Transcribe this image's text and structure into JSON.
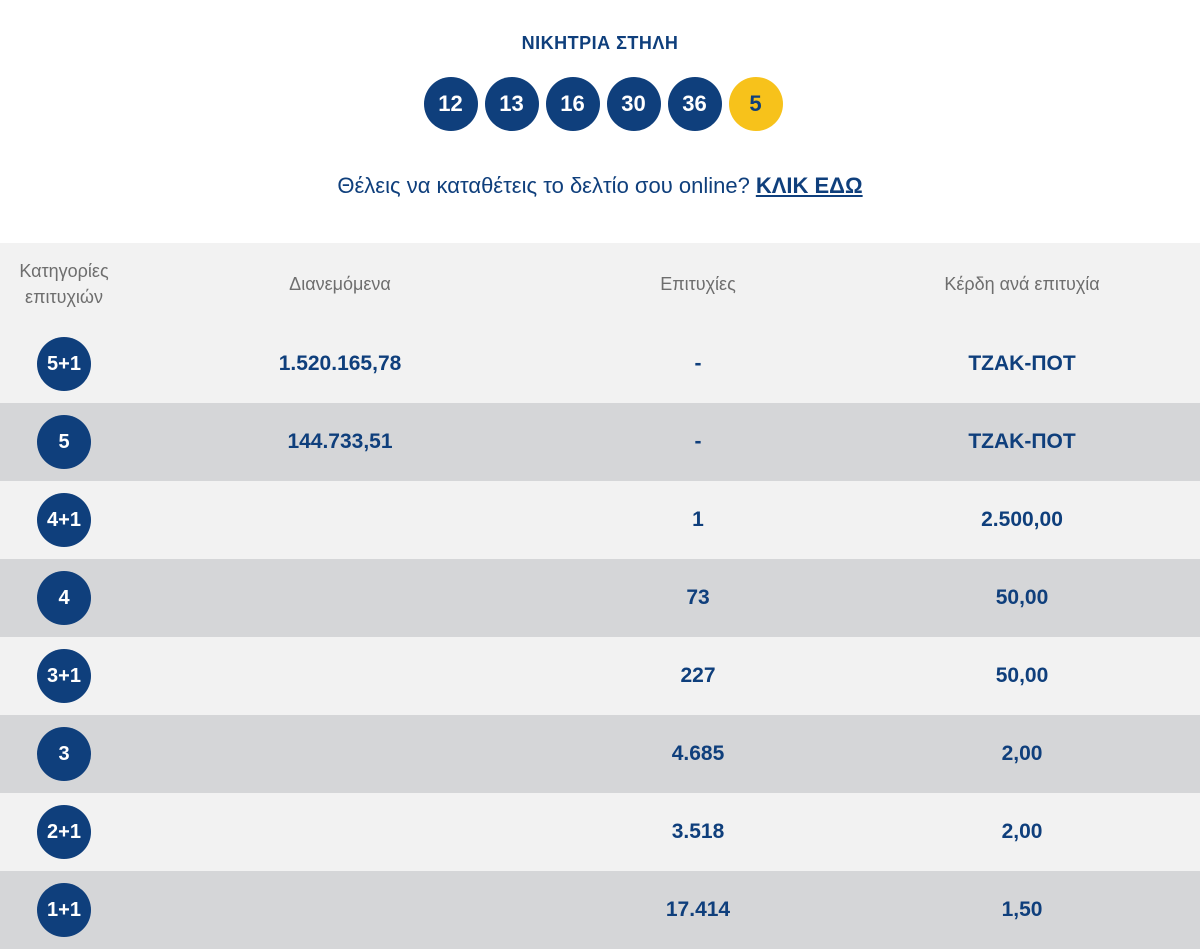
{
  "header": {
    "title": "ΝΙΚΗΤΡΙΑ ΣΤΗΛΗ",
    "numbers": [
      "12",
      "13",
      "16",
      "30",
      "36"
    ],
    "bonus": "5"
  },
  "promo": {
    "text": "Θέλεις να καταθέτεις το δελτίο σου online?",
    "link_label": "ΚΛΙΚ ΕΔΩ"
  },
  "table": {
    "headers": {
      "category": "Κατηγορίες επιτυχιών",
      "distributed": "Διανεμόμενα",
      "winners": "Επιτυχίες",
      "prize": "Κέρδη ανά επιτυχία"
    },
    "rows": [
      {
        "category": "5+1",
        "distributed": "1.520.165,78",
        "winners": "-",
        "prize": "ΤΖΑΚ-ΠΟΤ"
      },
      {
        "category": "5",
        "distributed": "144.733,51",
        "winners": "-",
        "prize": "ΤΖΑΚ-ΠΟΤ"
      },
      {
        "category": "4+1",
        "distributed": "",
        "winners": "1",
        "prize": "2.500,00"
      },
      {
        "category": "4",
        "distributed": "",
        "winners": "73",
        "prize": "50,00"
      },
      {
        "category": "3+1",
        "distributed": "",
        "winners": "227",
        "prize": "50,00"
      },
      {
        "category": "3",
        "distributed": "",
        "winners": "4.685",
        "prize": "2,00"
      },
      {
        "category": "2+1",
        "distributed": "",
        "winners": "3.518",
        "prize": "2,00"
      },
      {
        "category": "1+1",
        "distributed": "",
        "winners": "17.414",
        "prize": "1,50"
      }
    ]
  },
  "colors": {
    "primary": "#0f3f7c",
    "bonus": "#f7c21b",
    "row_light": "#f2f2f2",
    "row_dark": "#d5d6d8",
    "header_text": "#6e6e6e"
  }
}
